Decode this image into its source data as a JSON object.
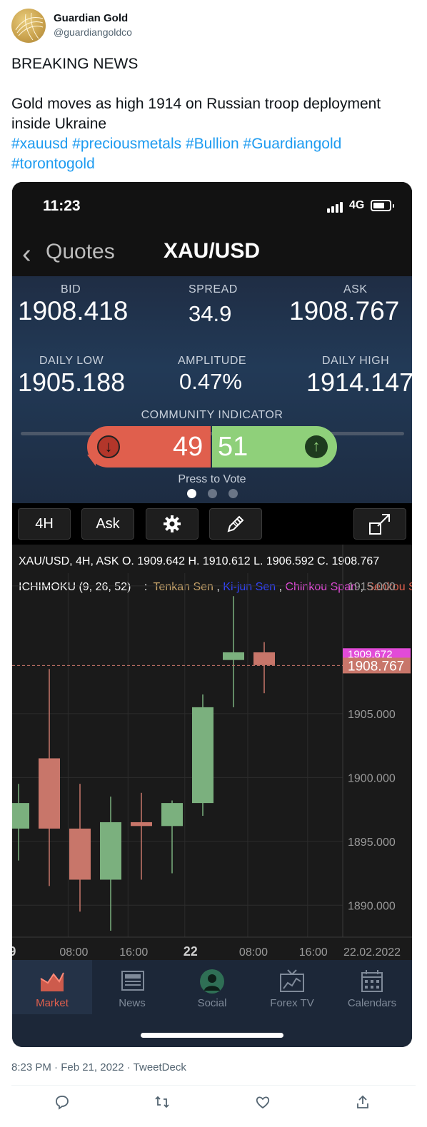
{
  "tweet": {
    "author_name": "Guardian Gold",
    "author_handle": "@guardiangoldco",
    "headline": "BREAKING NEWS",
    "body": "Gold moves as high 1914 on Russian troop deployment inside Ukraine",
    "hashtags_line1": "#xauusd #preciousmetals #Bullion #Guardiangold",
    "hashtags_line2": "#torontogold",
    "meta": "8:23 PM · Feb 21, 2022 · TweetDeck"
  },
  "phone": {
    "status": {
      "time": "11:23",
      "network": "4G"
    },
    "nav": {
      "back_label": "Quotes",
      "title": "XAU/USD"
    },
    "quote": {
      "bid_label": "BID",
      "bid": "1908.418",
      "spread_label": "SPREAD",
      "spread": "34.9",
      "ask_label": "ASK",
      "ask": "1908.767",
      "low_label": "DAILY LOW",
      "low": "1905.188",
      "amp_label": "AMPLITUDE",
      "amp": "0.47%",
      "high_label": "DAILY HIGH",
      "high": "1914.147",
      "community_label": "COMMUNITY INDICATOR",
      "vote_down": "49",
      "vote_up": "51",
      "press_to_vote": "Press to Vote",
      "slider_fraction": 0.4
    },
    "toolbar": {
      "timeframe": "4H",
      "price_type": "Ask"
    },
    "chart_info": {
      "line1": "XAU/USD, 4H, ASK   O. 1909.642 H. 1910.612 L. 1906.592 C. 1908.767",
      "indicator": "ICHIMOKU (9, 26, 52)",
      "sep": " : ",
      "tenkan": "Tenkan Sen",
      "kijun": "Ki-jun Sen",
      "chinkou": "Chinkou Span",
      "senkou": "Senkou Span"
    },
    "tabs": [
      {
        "label": "Market",
        "icon": "market-chart-icon"
      },
      {
        "label": "News",
        "icon": "newspaper-icon"
      },
      {
        "label": "Social",
        "icon": "user-silhouette-icon"
      },
      {
        "label": "Forex TV",
        "icon": "tv-icon"
      },
      {
        "label": "Calendars",
        "icon": "calendar-icon"
      }
    ]
  },
  "colors": {
    "bull": "#7bb07e",
    "bear": "#c8766a",
    "ask_line": "#c8766a",
    "tenkan": "#c8a46a",
    "kijun": "#3344ff",
    "chinkou": "#e24bd8",
    "senkou": "#e05f4d"
  },
  "chart_data": {
    "type": "candlestick",
    "ylim": [
      1887.5,
      1916
    ],
    "y_ticks": [
      "1915.000",
      "1905.000",
      "1900.000",
      "1895.000",
      "1890.000"
    ],
    "y_tick_values": [
      1915,
      1905,
      1900,
      1895,
      1890
    ],
    "price_tags": [
      {
        "label": "1909.672",
        "value": 1909.67,
        "color": "#e24bd8"
      },
      {
        "label": "1908.767",
        "value": 1908.767,
        "color": "#c8766a"
      }
    ],
    "x_labels": [
      "9",
      "08:00",
      "16:00",
      "22",
      "08:00",
      "16:00",
      "22.02.2022"
    ],
    "x_label_slots": [
      -0.2,
      1.8,
      3.75,
      5.6,
      7.65,
      9.6,
      11.8
    ],
    "candles": [
      {
        "o": 1896,
        "h": 1899.5,
        "l": 1893.5,
        "c": 1898
      },
      {
        "o": 1901.5,
        "h": 1908.5,
        "l": 1891.5,
        "c": 1896
      },
      {
        "o": 1896,
        "h": 1899.5,
        "l": 1889.5,
        "c": 1892
      },
      {
        "o": 1892,
        "h": 1898.5,
        "l": 1888,
        "c": 1896.5
      },
      {
        "o": 1896.5,
        "h": 1898.8,
        "l": 1892,
        "c": 1896.2
      },
      {
        "o": 1896.2,
        "h": 1898.2,
        "l": 1892.5,
        "c": 1898
      },
      {
        "o": 1898,
        "h": 1906.5,
        "l": 1897,
        "c": 1905.5
      },
      {
        "o": 1909.2,
        "h": 1914.2,
        "l": 1905.5,
        "c": 1909.8
      },
      {
        "o": 1909.8,
        "h": 1910.6,
        "l": 1906.6,
        "c": 1908.8
      }
    ]
  }
}
